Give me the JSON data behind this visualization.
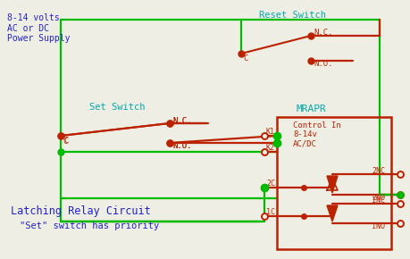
{
  "bg_color": "#eeeee4",
  "green_color": "#00bb00",
  "red_color": "#bb2200",
  "blue_color": "#2222cc",
  "cyan_color": "#00aaaa",
  "title": "Latching Relay Circuit",
  "subtitle": "\"Set\" switch has priority",
  "power_label": "8-14 volts\nAC or DC\nPower Supply",
  "reset_label": "Reset Switch",
  "set_label": "Set Switch",
  "relay_label": "MRAPR",
  "control_label": "Control In\n8-14v\nAC/DC"
}
